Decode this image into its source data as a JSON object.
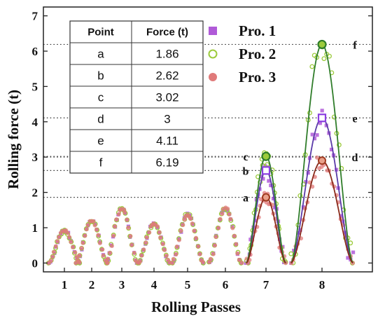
{
  "chart_data": {
    "type": "scatter",
    "xlabel": "Rolling Passes",
    "ylabel": "Rolling force (t)",
    "ylim": [
      -0.25,
      7.25
    ],
    "y_ticks": [
      0,
      1,
      2,
      3,
      4,
      5,
      6,
      7
    ],
    "x_tick_labels": [
      "1",
      "2",
      "3",
      "4",
      "5",
      "6",
      "7",
      "8"
    ],
    "pass_centers": [
      1,
      2,
      3,
      4,
      5,
      6,
      7,
      8
    ],
    "legend_position": "top-right",
    "series": [
      {
        "name": "Pro. 1",
        "marker": "filled-square",
        "color": "#b05ad8",
        "fit_color": "#5a3aa8",
        "peaks": [
          0.92,
          1.2,
          1.55,
          1.12,
          1.38,
          1.55,
          2.62,
          4.11
        ]
      },
      {
        "name": "Pro. 2",
        "marker": "open-circle",
        "color": "#9ccb3c",
        "fit_color": "#2f7d2a",
        "peaks": [
          0.92,
          1.2,
          1.55,
          1.12,
          1.38,
          1.55,
          3.02,
          6.19
        ]
      },
      {
        "name": "Pro. 3",
        "marker": "filled-circle",
        "color": "#e07a7a",
        "fit_color": "#8a2a1a",
        "peaks": [
          0.92,
          1.2,
          1.55,
          1.12,
          1.38,
          1.55,
          1.86,
          2.9
        ]
      }
    ],
    "reference_lines": [
      {
        "label": "a",
        "value": 1.86
      },
      {
        "label": "b",
        "value": 2.62
      },
      {
        "label": "c",
        "value": 3.02
      },
      {
        "label": "d",
        "value": 3.0
      },
      {
        "label": "e",
        "value": 4.11
      },
      {
        "label": "f",
        "value": 6.19
      }
    ],
    "table": {
      "headers": [
        "Point",
        "Force (t)"
      ],
      "rows": [
        [
          "a",
          "1.86"
        ],
        [
          "b",
          "2.62"
        ],
        [
          "c",
          "3.02"
        ],
        [
          "d",
          "3"
        ],
        [
          "e",
          "4.11"
        ],
        [
          "f",
          "6.19"
        ]
      ]
    }
  }
}
